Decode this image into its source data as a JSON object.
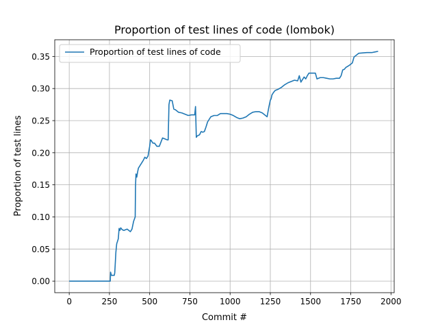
{
  "chart_data": {
    "type": "line",
    "title": "Proportion of test lines of code (lombok)",
    "xlabel": "Commit #",
    "ylabel": "Proportion of test lines",
    "xlim": [
      -90,
      2020
    ],
    "ylim": [
      -0.018,
      0.376
    ],
    "xticks": [
      0,
      250,
      500,
      750,
      1000,
      1250,
      1500,
      1750,
      2000
    ],
    "yticks": [
      0.0,
      0.05,
      0.1,
      0.15,
      0.2,
      0.25,
      0.3,
      0.35
    ],
    "xtick_labels": [
      "0",
      "250",
      "500",
      "750",
      "1000",
      "1250",
      "1500",
      "1750",
      "2000"
    ],
    "ytick_labels": [
      "0.00",
      "0.05",
      "0.10",
      "0.15",
      "0.20",
      "0.25",
      "0.30",
      "0.35"
    ],
    "grid": true,
    "legend": "top-left",
    "color": "#1f77b4",
    "series": [
      {
        "name": "Proportion of test lines of code",
        "x": [
          0,
          255,
          257,
          262,
          265,
          280,
          283,
          290,
          295,
          305,
          310,
          315,
          320,
          330,
          340,
          360,
          380,
          390,
          400,
          410,
          412,
          415,
          420,
          425,
          430,
          440,
          450,
          460,
          470,
          480,
          490,
          500,
          505,
          510,
          520,
          530,
          545,
          560,
          580,
          610,
          615,
          620,
          625,
          640,
          650,
          660,
          680,
          700,
          720,
          740,
          760,
          780,
          785,
          790,
          792,
          795,
          810,
          820,
          830,
          840,
          850,
          860,
          870,
          880,
          900,
          920,
          940,
          960,
          980,
          1000,
          1020,
          1040,
          1060,
          1080,
          1100,
          1120,
          1140,
          1160,
          1180,
          1200,
          1220,
          1230,
          1240,
          1250,
          1255,
          1260,
          1270,
          1280,
          1300,
          1320,
          1340,
          1360,
          1380,
          1400,
          1420,
          1430,
          1440,
          1460,
          1470,
          1480,
          1490,
          1500,
          1530,
          1540,
          1560,
          1580,
          1600,
          1620,
          1640,
          1660,
          1680,
          1690,
          1700,
          1710,
          1720,
          1740,
          1750,
          1760,
          1770,
          1800,
          1850,
          1880,
          1900,
          1920
        ],
        "y": [
          0.0,
          0.0,
          0.014,
          0.009,
          0.009,
          0.009,
          0.013,
          0.045,
          0.058,
          0.066,
          0.082,
          0.079,
          0.083,
          0.08,
          0.079,
          0.081,
          0.077,
          0.081,
          0.093,
          0.1,
          0.148,
          0.167,
          0.162,
          0.17,
          0.176,
          0.18,
          0.184,
          0.188,
          0.193,
          0.191,
          0.195,
          0.21,
          0.22,
          0.219,
          0.215,
          0.215,
          0.21,
          0.21,
          0.223,
          0.22,
          0.22,
          0.275,
          0.282,
          0.281,
          0.268,
          0.267,
          0.263,
          0.262,
          0.26,
          0.258,
          0.259,
          0.259,
          0.272,
          0.224,
          0.225,
          0.226,
          0.228,
          0.233,
          0.232,
          0.233,
          0.24,
          0.248,
          0.252,
          0.256,
          0.258,
          0.258,
          0.261,
          0.261,
          0.261,
          0.26,
          0.258,
          0.255,
          0.253,
          0.254,
          0.256,
          0.26,
          0.263,
          0.264,
          0.264,
          0.262,
          0.258,
          0.256,
          0.27,
          0.282,
          0.284,
          0.29,
          0.294,
          0.297,
          0.299,
          0.302,
          0.306,
          0.309,
          0.311,
          0.313,
          0.312,
          0.32,
          0.31,
          0.318,
          0.315,
          0.32,
          0.324,
          0.324,
          0.324,
          0.315,
          0.317,
          0.317,
          0.316,
          0.315,
          0.315,
          0.316,
          0.316,
          0.32,
          0.329,
          0.33,
          0.333,
          0.336,
          0.338,
          0.34,
          0.349,
          0.355,
          0.356,
          0.356,
          0.357,
          0.358
        ]
      }
    ]
  }
}
